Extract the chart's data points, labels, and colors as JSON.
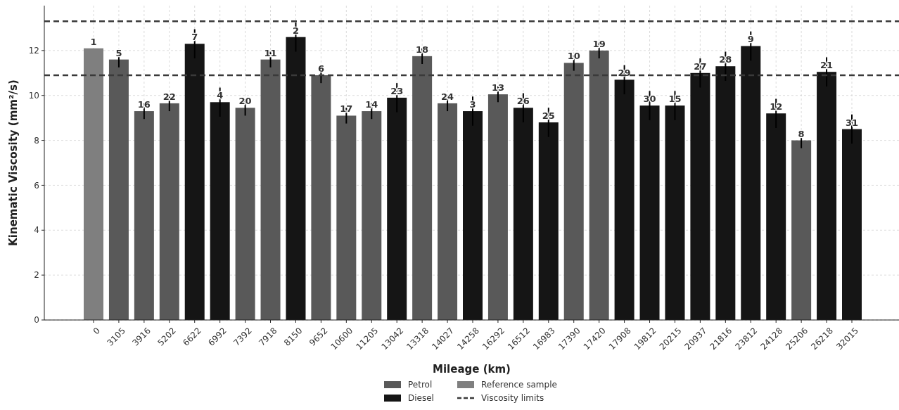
{
  "chart_data": {
    "type": "bar",
    "xlabel": "Mileage (km)",
    "ylabel": "Kinematic Viscosity (mm²/s)",
    "categories": [
      "0",
      "3105",
      "3916",
      "5202",
      "6622",
      "6992",
      "7392",
      "7918",
      "8150",
      "9652",
      "10600",
      "11205",
      "13042",
      "13318",
      "14027",
      "14258",
      "16292",
      "16512",
      "16983",
      "17390",
      "17420",
      "17908",
      "19812",
      "20215",
      "20937",
      "21816",
      "23812",
      "24128",
      "25206",
      "26218",
      "32015"
    ],
    "series": [
      {
        "name": "Petrol",
        "color": "#595959",
        "values": [
          null,
          11.6,
          9.3,
          9.65,
          null,
          null,
          9.45,
          11.6,
          null,
          10.9,
          9.1,
          9.3,
          null,
          11.75,
          9.65,
          null,
          10.05,
          null,
          null,
          11.45,
          12.0,
          null,
          null,
          null,
          null,
          null,
          null,
          null,
          8.0,
          null,
          null
        ],
        "errors": [
          null,
          0.35,
          0.35,
          0.35,
          null,
          null,
          0.35,
          0.35,
          null,
          0.35,
          0.35,
          0.35,
          null,
          0.35,
          0.35,
          null,
          0.35,
          null,
          null,
          0.35,
          0.35,
          null,
          null,
          null,
          null,
          null,
          null,
          null,
          0.35,
          null,
          null
        ]
      },
      {
        "name": "Diesel",
        "color": "#151515",
        "values": [
          null,
          null,
          null,
          null,
          12.3,
          9.7,
          null,
          null,
          12.6,
          null,
          null,
          null,
          9.9,
          null,
          null,
          9.3,
          null,
          9.45,
          8.8,
          null,
          null,
          10.7,
          9.55,
          9.55,
          11.0,
          11.3,
          12.2,
          9.2,
          null,
          11.05,
          8.5
        ],
        "errors": [
          null,
          null,
          null,
          null,
          0.65,
          0.65,
          null,
          null,
          0.65,
          null,
          null,
          null,
          0.65,
          null,
          null,
          0.65,
          null,
          0.65,
          0.65,
          null,
          null,
          0.65,
          0.65,
          0.65,
          0.65,
          0.65,
          0.65,
          0.65,
          null,
          0.65,
          0.65
        ]
      },
      {
        "name": "Reference sample",
        "color": "#7f7f7f",
        "values": [
          12.1,
          null,
          null,
          null,
          null,
          null,
          null,
          null,
          null,
          null,
          null,
          null,
          null,
          null,
          null,
          null,
          null,
          null,
          null,
          null,
          null,
          null,
          null,
          null,
          null,
          null,
          null,
          null,
          null,
          null,
          null
        ]
      }
    ],
    "annotations": [
      {
        "text": "1",
        "x": "0",
        "y": 12.1
      },
      {
        "text": "5",
        "x": "3105",
        "y": 11.6
      },
      {
        "text": "16",
        "x": "3916",
        "y": 9.3
      },
      {
        "text": "22",
        "x": "5202",
        "y": 9.65
      },
      {
        "text": "7",
        "x": "6622",
        "y": 12.3
      },
      {
        "text": "4",
        "x": "6992",
        "y": 9.7
      },
      {
        "text": "20",
        "x": "7392",
        "y": 9.45
      },
      {
        "text": "11",
        "x": "7918",
        "y": 11.6
      },
      {
        "text": "2",
        "x": "8150",
        "y": 12.6
      },
      {
        "text": "6",
        "x": "9652",
        "y": 10.9
      },
      {
        "text": "17",
        "x": "10600",
        "y": 9.1
      },
      {
        "text": "14",
        "x": "11205",
        "y": 9.3
      },
      {
        "text": "23",
        "x": "13042",
        "y": 9.9
      },
      {
        "text": "18",
        "x": "13318",
        "y": 11.75
      },
      {
        "text": "24",
        "x": "14027",
        "y": 9.65
      },
      {
        "text": "3",
        "x": "14258",
        "y": 9.3
      },
      {
        "text": "13",
        "x": "16292",
        "y": 10.05
      },
      {
        "text": "26",
        "x": "16512",
        "y": 9.45
      },
      {
        "text": "25",
        "x": "16983",
        "y": 8.8
      },
      {
        "text": "10",
        "x": "17390",
        "y": 11.45
      },
      {
        "text": "19",
        "x": "17420",
        "y": 12.0
      },
      {
        "text": "29",
        "x": "17908",
        "y": 10.7
      },
      {
        "text": "30",
        "x": "19812",
        "y": 9.55
      },
      {
        "text": "15",
        "x": "20215",
        "y": 9.55
      },
      {
        "text": "27",
        "x": "20937",
        "y": 11.0
      },
      {
        "text": "28",
        "x": "21816",
        "y": 11.3
      },
      {
        "text": "9",
        "x": "23812",
        "y": 12.2
      },
      {
        "text": "12",
        "x": "24128",
        "y": 9.2
      },
      {
        "text": "8",
        "x": "25206",
        "y": 8.0
      },
      {
        "text": "21",
        "x": "26218",
        "y": 11.05
      },
      {
        "text": "31",
        "x": "32015",
        "y": 8.5
      }
    ],
    "ylim": [
      0,
      14
    ],
    "yticks": [
      0,
      2,
      4,
      6,
      8,
      10,
      12
    ],
    "ref_lines": [
      {
        "axis": "y",
        "value": 13.3,
        "label": "Viscosity limits",
        "color": "#3a3a3a",
        "line_style": "dashed"
      },
      {
        "axis": "y",
        "value": 10.9,
        "color": "#3a3a3a",
        "line_style": "dashed"
      }
    ],
    "grid": true,
    "legend": "bottom"
  }
}
